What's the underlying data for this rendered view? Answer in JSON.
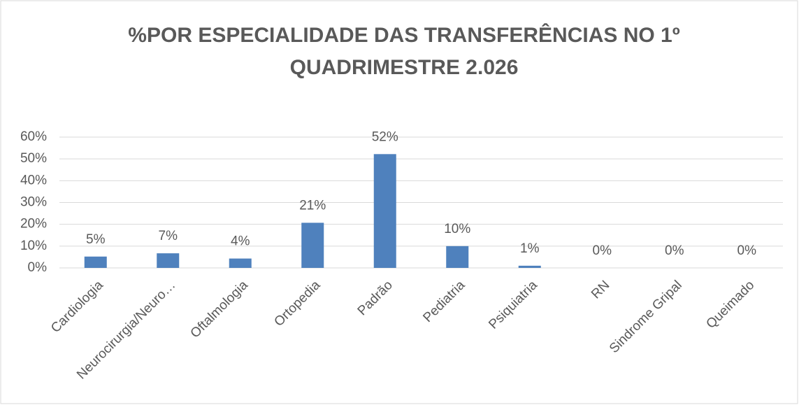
{
  "chart_data": {
    "type": "bar",
    "title": [
      "%POR ESPECIALIDADE DAS TRANSFERÊNCIAS NO  1º",
      "QUADRIMESTRE 2.026"
    ],
    "categories": [
      "Cardiologia",
      "Neurocirurgia/Neuro…",
      "Oftalmologia",
      "Ortopedia",
      "Padrão",
      "Pediatria",
      "Psiquiatria",
      "RN",
      "Sindrome Gripal",
      "Queimado"
    ],
    "values": [
      5.2,
      6.7,
      4.3,
      20.7,
      52.2,
      10,
      1,
      0,
      0,
      0
    ],
    "value_labels": [
      "5%",
      "7%",
      "4%",
      "21%",
      "52%",
      "10%",
      "1%",
      "0%",
      "0%",
      "0%"
    ],
    "color": "#4f81bd",
    "ylim": [
      0,
      60
    ],
    "yticks": [
      {
        "value": 0,
        "label": "0%"
      },
      {
        "value": 10,
        "label": "10%"
      },
      {
        "value": 20,
        "label": "20%"
      },
      {
        "value": 30,
        "label": "30%"
      },
      {
        "value": 40,
        "label": "40%"
      },
      {
        "value": 50,
        "label": "50%"
      },
      {
        "value": 60,
        "label": "60%"
      }
    ],
    "grid": true
  }
}
